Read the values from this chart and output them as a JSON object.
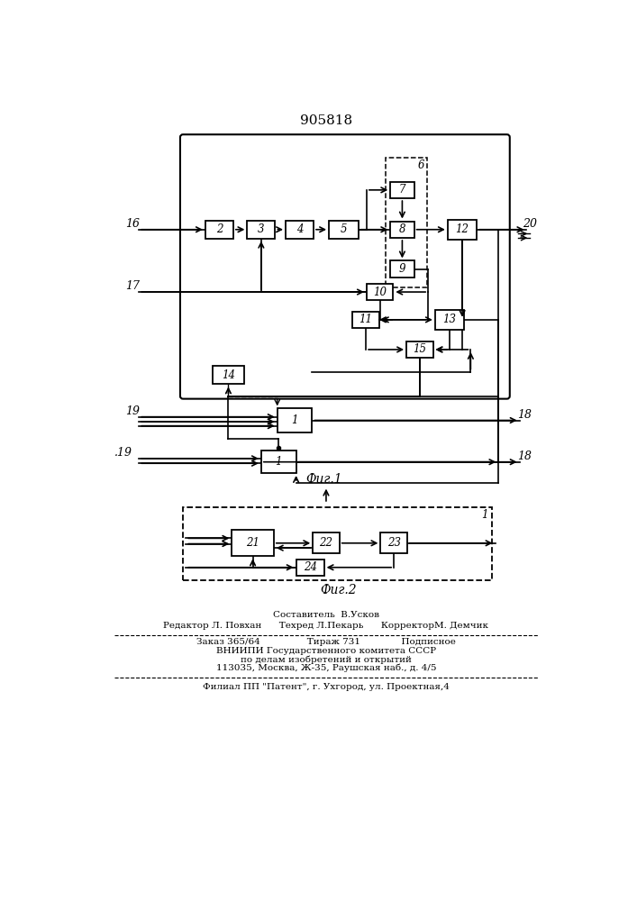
{
  "title": "905818",
  "fig1_label": "Фиг.1",
  "fig2_label": "Фиг.2",
  "bg_color": "#ffffff"
}
